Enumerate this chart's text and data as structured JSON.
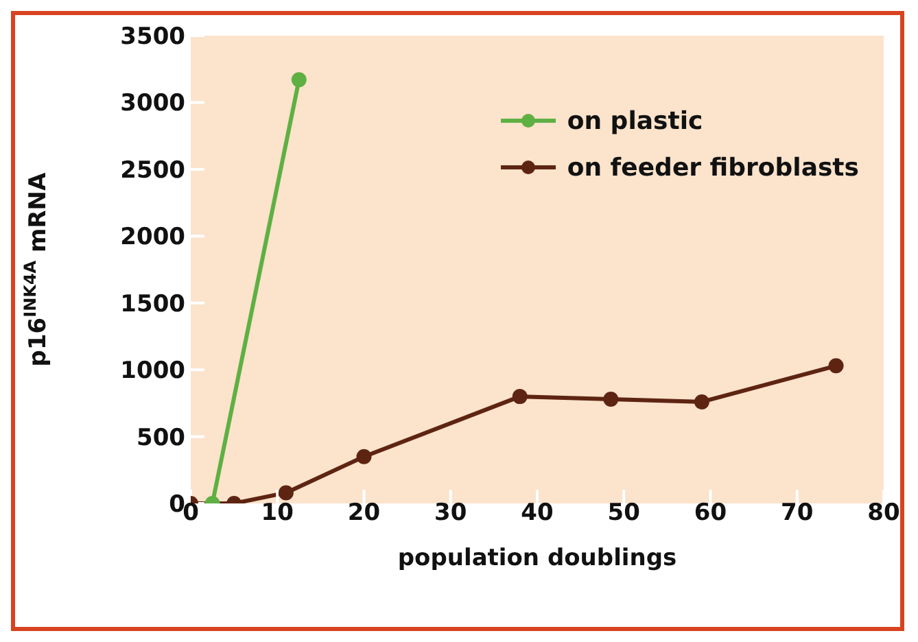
{
  "chart_data": {
    "type": "line",
    "xlabel": "population doublings",
    "ylabel": "p16$^{INK4A}$ mRNA",
    "xlim": [
      0,
      80
    ],
    "xticks": [
      0,
      10,
      20,
      30,
      40,
      50,
      60,
      70,
      80
    ],
    "ylim": [
      0,
      3500
    ],
    "yticks": [
      0,
      500,
      1000,
      1500,
      2000,
      2500,
      3000,
      3500
    ],
    "grid": false,
    "legend": "top right",
    "marker": "circle",
    "line_style": "solid",
    "series": [
      {
        "name": "on plastic",
        "color": "#5fb043",
        "x": [
          2.5,
          12.5
        ],
        "values": [
          0,
          3170
        ]
      },
      {
        "name": "on feeder fibroblasts",
        "color": "#5e2412",
        "x": [
          0,
          5,
          11,
          20,
          38,
          48.5,
          59,
          74.5
        ],
        "values": [
          0,
          0,
          80,
          350,
          800,
          780,
          760,
          1030
        ]
      }
    ]
  }
}
